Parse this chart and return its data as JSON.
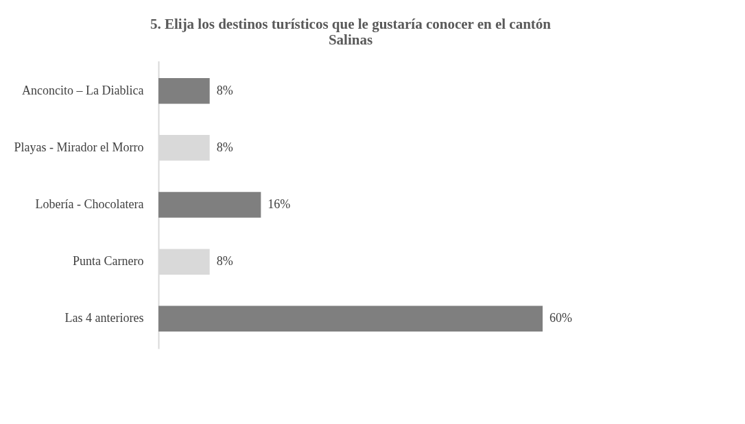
{
  "chart_data": {
    "type": "bar",
    "orientation": "horizontal",
    "title": [
      "5. Elija los destinos turísticos que le gustaría conocer en el cantón",
      "Salinas"
    ],
    "categories": [
      "Anconcito – La Diablica",
      "Playas - Mirador el Morro",
      "Lobería - Chocolatera",
      "Punta Carnero",
      "Las 4 anteriores"
    ],
    "values": [
      8,
      8,
      16,
      8,
      60
    ],
    "colors": [
      "#7f7f7f",
      "#d9d9d9",
      "#7f7f7f",
      "#d9d9d9",
      "#7f7f7f"
    ],
    "value_labels": [
      "8%",
      "8%",
      "16%",
      "8%",
      "60%"
    ],
    "grid": false
  }
}
